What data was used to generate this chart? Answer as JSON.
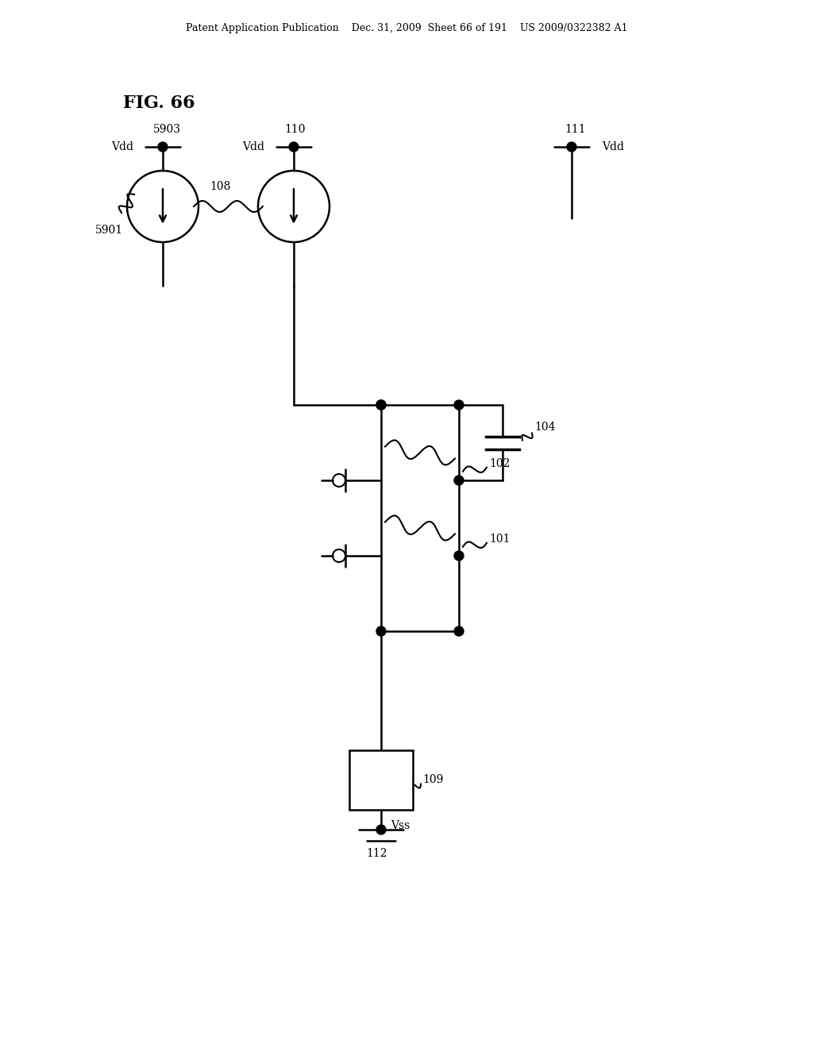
{
  "header": "Patent Application Publication    Dec. 31, 2009  Sheet 66 of 191    US 2009/0322382 A1",
  "bg_color": "#ffffff",
  "fig_width": 10.24,
  "fig_height": 13.2,
  "labels": {
    "fig_title": "FIG. 66",
    "cs1_top_label": "5903",
    "vdd1_label": "Vdd",
    "cs1_ref_label": "5901",
    "cs2_top_label": "110",
    "vdd2_label": "Vdd",
    "cs_conn_label": "108",
    "vdd3_top_label": "111",
    "vdd3_label": "Vdd",
    "cap_label": "104",
    "tr2_label": "102",
    "tr1_label": "101",
    "res_label": "109",
    "vss_label": "Vss",
    "vss_num_label": "112"
  }
}
